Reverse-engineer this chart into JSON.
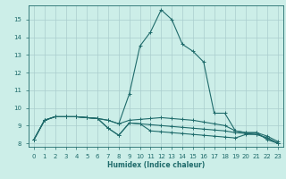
{
  "xlabel": "Humidex (Indice chaleur)",
  "xlim": [
    -0.5,
    23.5
  ],
  "ylim": [
    7.8,
    15.8
  ],
  "yticks": [
    8,
    9,
    10,
    11,
    12,
    13,
    14,
    15
  ],
  "xticks": [
    0,
    1,
    2,
    3,
    4,
    5,
    6,
    7,
    8,
    9,
    10,
    11,
    12,
    13,
    14,
    15,
    16,
    17,
    18,
    19,
    20,
    21,
    22,
    23
  ],
  "bg_color": "#cceee8",
  "line_color": "#1f6b6b",
  "grid_color": "#aacece",
  "lines": [
    {
      "x": [
        0,
        1,
        2,
        3,
        4,
        5,
        6,
        7,
        8,
        9,
        10,
        11,
        12,
        13,
        14,
        15,
        16,
        17,
        18,
        19,
        20,
        21,
        22,
        23
      ],
      "y": [
        8.2,
        9.3,
        9.5,
        9.5,
        9.5,
        9.45,
        9.4,
        9.3,
        9.1,
        10.8,
        13.5,
        14.3,
        15.55,
        15.0,
        13.6,
        13.2,
        12.6,
        9.7,
        9.7,
        8.7,
        8.6,
        8.6,
        8.2,
        8.0
      ]
    },
    {
      "x": [
        0,
        1,
        2,
        3,
        4,
        5,
        6,
        7,
        8,
        9,
        10,
        11,
        12,
        13,
        14,
        15,
        16,
        17,
        18,
        19,
        20,
        21,
        22,
        23
      ],
      "y": [
        8.2,
        9.3,
        9.5,
        9.5,
        9.5,
        9.45,
        9.4,
        9.3,
        9.1,
        9.3,
        9.35,
        9.4,
        9.45,
        9.4,
        9.35,
        9.3,
        9.2,
        9.1,
        9.0,
        8.7,
        8.6,
        8.6,
        8.4,
        8.1
      ]
    },
    {
      "x": [
        0,
        1,
        2,
        3,
        4,
        5,
        6,
        7,
        8,
        9,
        10,
        11,
        12,
        13,
        14,
        15,
        16,
        17,
        18,
        19,
        20,
        21,
        22,
        23
      ],
      "y": [
        8.2,
        9.3,
        9.5,
        9.5,
        9.5,
        9.45,
        9.4,
        8.85,
        8.45,
        9.15,
        9.1,
        9.05,
        9.0,
        8.95,
        8.9,
        8.85,
        8.8,
        8.75,
        8.7,
        8.6,
        8.55,
        8.5,
        8.3,
        8.0
      ]
    },
    {
      "x": [
        0,
        1,
        2,
        3,
        4,
        5,
        6,
        7,
        8,
        9,
        10,
        11,
        12,
        13,
        14,
        15,
        16,
        17,
        18,
        19,
        20,
        21,
        22,
        23
      ],
      "y": [
        8.2,
        9.3,
        9.5,
        9.5,
        9.5,
        9.45,
        9.4,
        8.85,
        8.45,
        9.15,
        9.1,
        8.7,
        8.65,
        8.6,
        8.55,
        8.5,
        8.45,
        8.4,
        8.35,
        8.3,
        8.5,
        8.5,
        8.3,
        8.0
      ]
    }
  ]
}
